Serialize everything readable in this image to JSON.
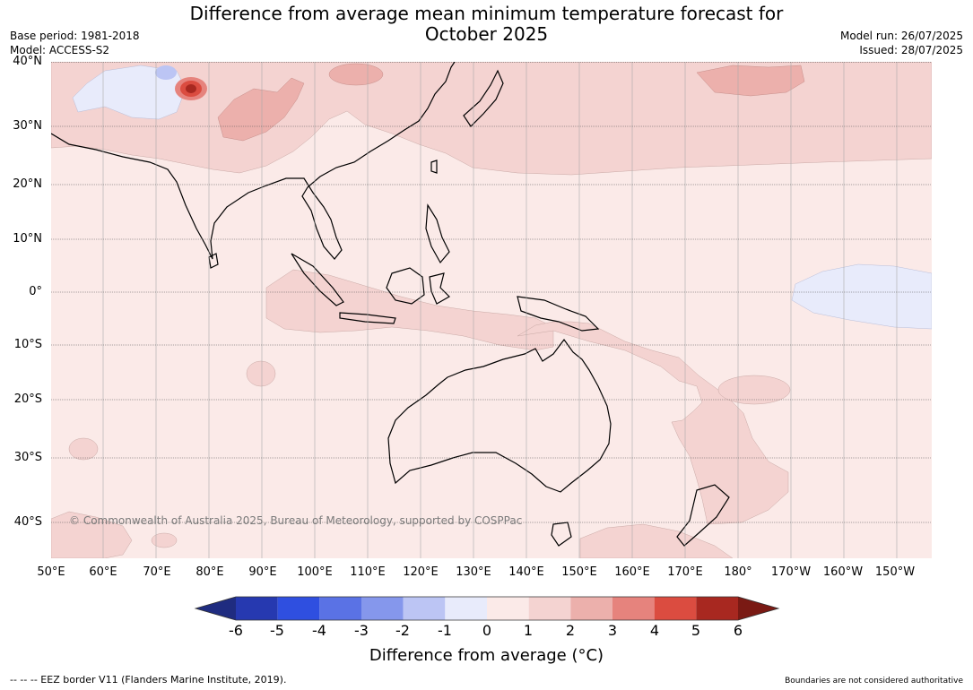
{
  "header": {
    "title_line1": "Difference from average mean minimum temperature forecast for",
    "title_line2": "October 2025",
    "base_period": "Base period: 1981-2018",
    "model": "Model: ACCESS-S2",
    "model_run": "Model run: 26/07/2025",
    "issued": "Issued: 28/07/2025"
  },
  "map": {
    "lat_labels": [
      "40°N",
      "30°N",
      "20°N",
      "10°N",
      "0°",
      "10°S",
      "20°S",
      "30°S",
      "40°S"
    ],
    "lon_labels": [
      "50°E",
      "60°E",
      "70°E",
      "80°E",
      "90°E",
      "100°E",
      "110°E",
      "120°E",
      "130°E",
      "140°E",
      "150°E",
      "160°E",
      "170°E",
      "180°",
      "170°W",
      "160°W",
      "150°W"
    ],
    "copyright": "© Commonwealth of Australia 2025, Bureau of Meteorology, supported by COSPPac",
    "background_color": "#fbeae8"
  },
  "colorbar": {
    "ticks": [
      "-6",
      "-5",
      "-4",
      "-3",
      "-2",
      "-1",
      "0",
      "1",
      "2",
      "3",
      "4",
      "5",
      "6"
    ],
    "colors": [
      "#1f2c80",
      "#2639b0",
      "#2f4fe0",
      "#5a72e5",
      "#8597ec",
      "#bcc5f4",
      "#e8ebfb",
      "#fbeae8",
      "#f4d3d1",
      "#ecb0ac",
      "#e6837d",
      "#db4c40",
      "#a82820",
      "#7a1a14"
    ],
    "label": "Difference from average (°C)"
  },
  "footer": {
    "left": "--  --  -- EEZ border V11 (Flanders Marine Institute, 2019).",
    "right": "Boundaries are not considered authoritative"
  }
}
